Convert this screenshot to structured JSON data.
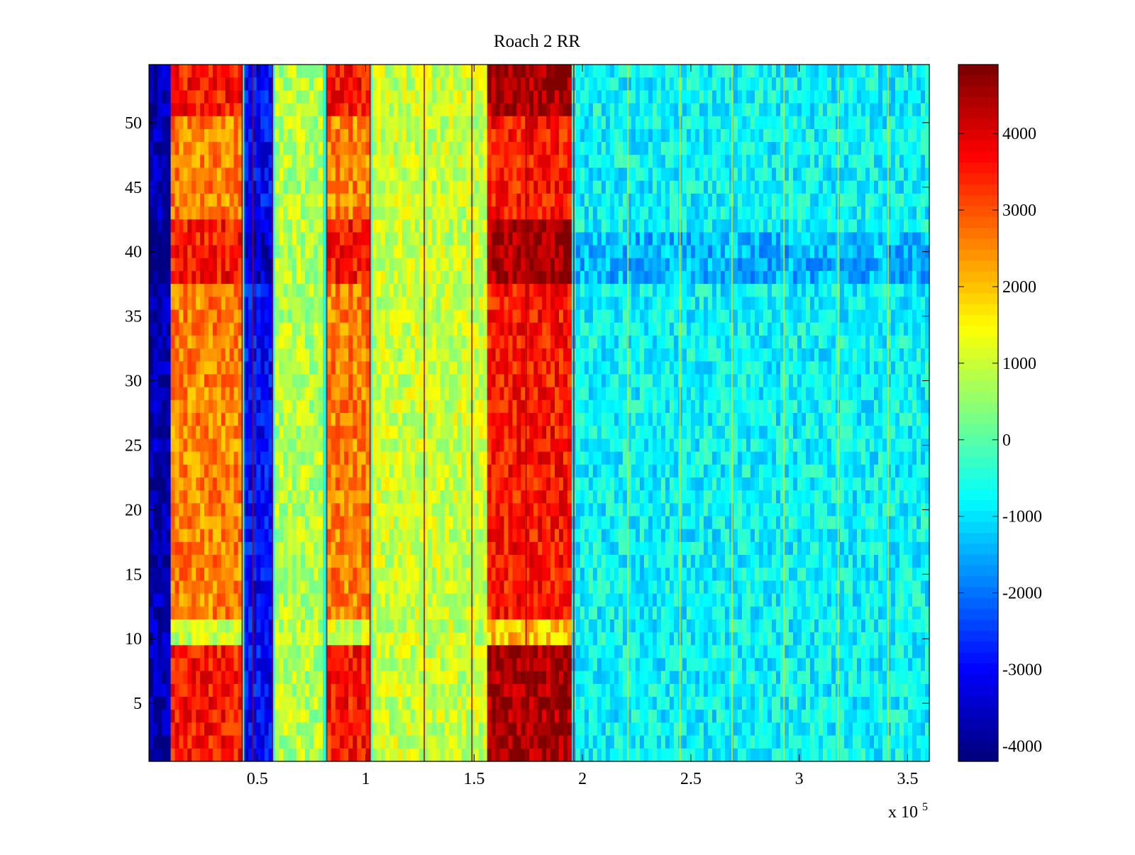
{
  "chart_data": {
    "type": "heatmap",
    "title": "Roach 2 RR",
    "xlabel": "",
    "ylabel": "",
    "x_exponent_label": "x 10",
    "x_exponent_power": "5",
    "xlim": [
      0,
      3.6
    ],
    "ylim": [
      0.5,
      54.5
    ],
    "x_ticks": [
      0.5,
      1,
      1.5,
      2,
      2.5,
      3,
      3.5
    ],
    "x_tick_labels": [
      "0.5",
      "1",
      "1.5",
      "2",
      "2.5",
      "3",
      "3.5"
    ],
    "y_ticks": [
      5,
      10,
      15,
      20,
      25,
      30,
      35,
      40,
      45,
      50
    ],
    "y_tick_labels": [
      "5",
      "10",
      "15",
      "20",
      "25",
      "30",
      "35",
      "40",
      "45",
      "50"
    ],
    "rows": 54,
    "colormap": "jet",
    "clim": [
      -4200,
      4900
    ],
    "colorbar": {
      "ticks": [
        -4000,
        -3000,
        -2000,
        -1000,
        0,
        1000,
        2000,
        3000,
        4000
      ],
      "tick_labels": [
        "-4000",
        "-3000",
        "-2000",
        "-1000",
        "0",
        "1000",
        "2000",
        "3000",
        "4000"
      ]
    },
    "column_segments": [
      {
        "x_start": 0.0,
        "x_end": 0.1,
        "value": -3800
      },
      {
        "x_start": 0.1,
        "x_end": 0.43,
        "value": 2600
      },
      {
        "x_start": 0.44,
        "x_end": 0.57,
        "value": -3000
      },
      {
        "x_start": 0.58,
        "x_end": 0.8,
        "value": 800
      },
      {
        "x_start": 0.82,
        "x_end": 1.02,
        "value": 2600
      },
      {
        "x_start": 1.03,
        "x_end": 1.56,
        "value": 1000
      },
      {
        "x_start": 1.56,
        "x_end": 1.95,
        "value": 3600
      },
      {
        "x_start": 1.95,
        "x_end": 3.6,
        "value": -800
      }
    ],
    "vertical_streaks_x": [
      0.43,
      0.48,
      0.57,
      0.82,
      1.02,
      1.27,
      1.49,
      1.74,
      1.96,
      2.21,
      2.45,
      2.69,
      2.93,
      3.18,
      3.41
    ]
  }
}
